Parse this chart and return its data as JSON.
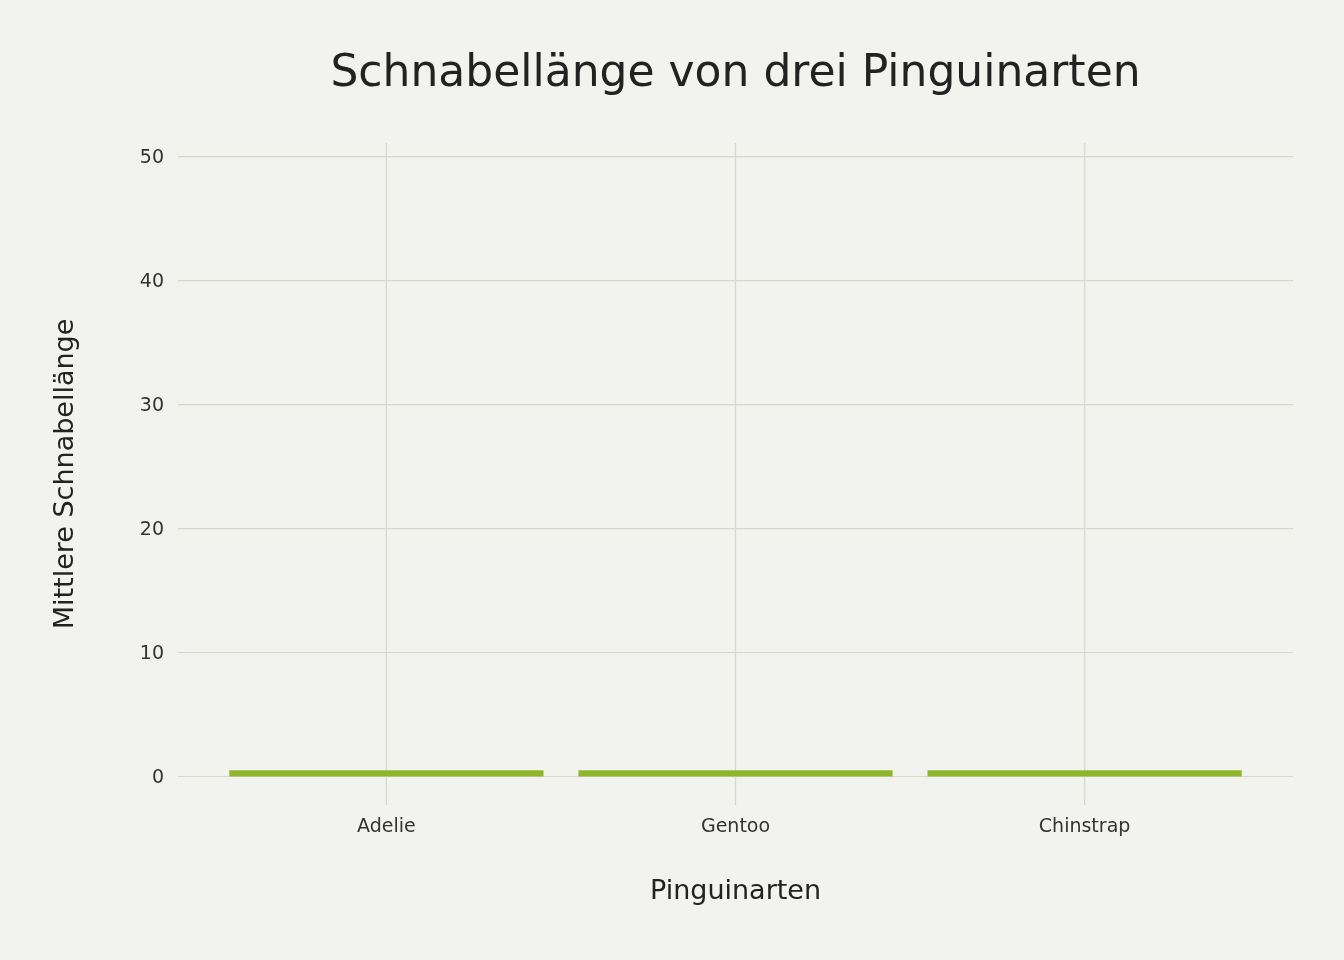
{
  "chart_data": {
    "type": "bar",
    "title": "Schnabellänge von drei Pinguinarten",
    "xlabel": "Pinguinarten",
    "ylabel": "Mittlere Schnabellänge",
    "categories": [
      "Adelie",
      "Gentoo",
      "Chinstrap"
    ],
    "values": [
      0.5,
      0.5,
      0.5
    ],
    "color": "#8fb52a",
    "ylim": [
      -2.3,
      51.1
    ],
    "yticks": [
      0,
      10,
      20,
      30,
      40,
      50
    ],
    "grid": true
  }
}
